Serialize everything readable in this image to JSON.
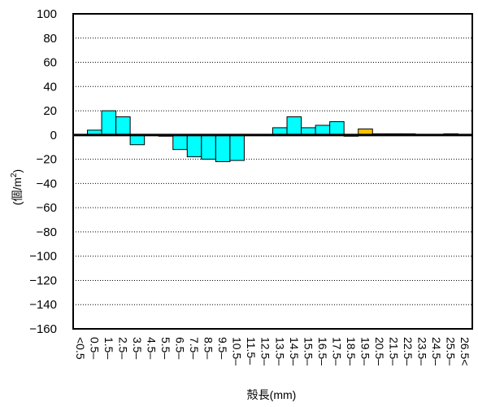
{
  "chart_data": {
    "type": "bar",
    "xlabel": "殻長(mm)",
    "ylabel": "(個/m²)",
    "ylabel_main": "(個/m",
    "ylabel_sup": "2",
    "ylabel_tail": ")",
    "ylim": [
      -160,
      100
    ],
    "yticks": [
      "100",
      "80",
      "60",
      "40",
      "20",
      "0",
      "−20",
      "−40",
      "−60",
      "−80",
      "−100",
      "−120",
      "−140",
      "−160"
    ],
    "grid": "horizontal dotted",
    "legend": "none",
    "categories": [
      "<0.5",
      "0.5–",
      "1.5–",
      "2.5–",
      "3.5–",
      "4.5–",
      "5.5–",
      "6.5–",
      "7.5–",
      "8.5–",
      "9.5–",
      "10.5–",
      "11.5–",
      "12.5–",
      "13.5–",
      "14.5–",
      "15.5–",
      "16.5–",
      "17.5–",
      "18.5–",
      "19.5–",
      "20.5–",
      "21.5–",
      "22.5–",
      "23.5–",
      "24.5–",
      "25.5–",
      "26.5<"
    ],
    "values": [
      0,
      4,
      20,
      15,
      -8,
      0,
      -1,
      -12,
      -18,
      -20,
      -22,
      -21,
      0,
      0,
      6,
      15,
      6,
      8,
      11,
      -1,
      5,
      1,
      1,
      1,
      0,
      0,
      1,
      0
    ],
    "colors": [
      "#00ffff",
      "#00ffff",
      "#00ffff",
      "#00ffff",
      "#00ffff",
      "#00ffff",
      "#00ffff",
      "#00ffff",
      "#00ffff",
      "#00ffff",
      "#00ffff",
      "#00ffff",
      "#00ffff",
      "#00ffff",
      "#00ffff",
      "#00ffff",
      "#00ffff",
      "#00ffff",
      "#00ffff",
      "#ffc000",
      "#ffc000",
      "#ffc000",
      "#ffc000",
      "#ffc000",
      "#ffc000",
      "#ffc000",
      "#ffc000",
      "#ffc000"
    ]
  }
}
